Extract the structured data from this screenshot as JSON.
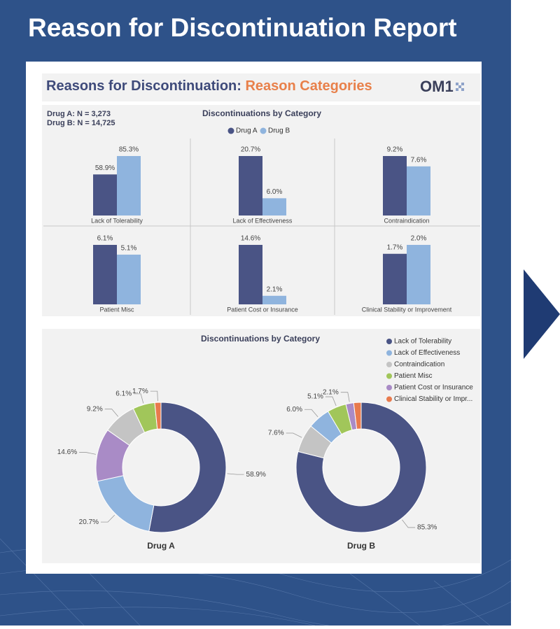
{
  "page_title": "Reason for Discontinuation Report",
  "report_title": "Reasons for Discontinuation:",
  "report_subtitle": "Reason Categories",
  "logo": "OM1",
  "counts": [
    "Drug A: N = 3,273",
    "Drug B: N = 14,725"
  ],
  "chart_data": [
    {
      "type": "bar",
      "title": "Discontinuations by Category",
      "categories": [
        "Lack of Tolerability",
        "Lack of Effectiveness",
        "Contraindication",
        "Patient Misc",
        "Patient Cost or Insurance",
        "Clinical Stability or Improvement"
      ],
      "series": [
        {
          "name": "Drug A",
          "color": "#4a5485",
          "values": [
            58.9,
            20.7,
            9.2,
            6.1,
            14.6,
            1.7
          ],
          "value_labels": [
            "58.9%",
            "20.7%",
            "9.2%",
            "6.1%",
            "14.6%",
            "1.7%"
          ]
        },
        {
          "name": "Drug B",
          "color": "#8fb4de",
          "values": [
            85.3,
            6.0,
            7.6,
            5.1,
            2.1,
            2.0
          ],
          "value_labels": [
            "85.3%",
            "6.0%",
            "7.6%",
            "5.1%",
            "2.1%",
            "2.0%"
          ]
        }
      ]
    },
    {
      "type": "pie",
      "title": "Discontinuations by Category",
      "legend": [
        {
          "name": "Lack of Tolerability",
          "color": "#4a5485"
        },
        {
          "name": "Lack of Effectiveness",
          "color": "#8fb4de"
        },
        {
          "name": "Contraindication",
          "color": "#c4c4c4"
        },
        {
          "name": "Patient Misc",
          "color": "#a1c65a"
        },
        {
          "name": "Patient Cost or Insurance",
          "color": "#a98bc6"
        },
        {
          "name": "Clinical Stability or Impr...",
          "color": "#e87a4d"
        }
      ],
      "series": [
        {
          "name": "Drug A",
          "values": [
            58.9,
            20.7,
            14.6,
            9.2,
            6.1,
            1.7
          ],
          "value_labels": [
            "58.9%",
            "20.7%",
            "14.6%",
            "9.2%",
            "6.1%",
            "1.7%"
          ],
          "colors": [
            "#4a5485",
            "#8fb4de",
            "#a98bc6",
            "#c4c4c4",
            "#a1c65a",
            "#e87a4d"
          ]
        },
        {
          "name": "Drug B",
          "values": [
            85.3,
            7.6,
            6.0,
            5.1,
            2.1,
            2.0
          ],
          "value_labels": [
            "85.3%",
            "7.6%",
            "6.0%",
            "5.1%",
            "2.1%",
            null
          ],
          "colors": [
            "#4a5485",
            "#c4c4c4",
            "#8fb4de",
            "#a1c65a",
            "#a98bc6",
            "#e87a4d"
          ]
        }
      ]
    }
  ]
}
